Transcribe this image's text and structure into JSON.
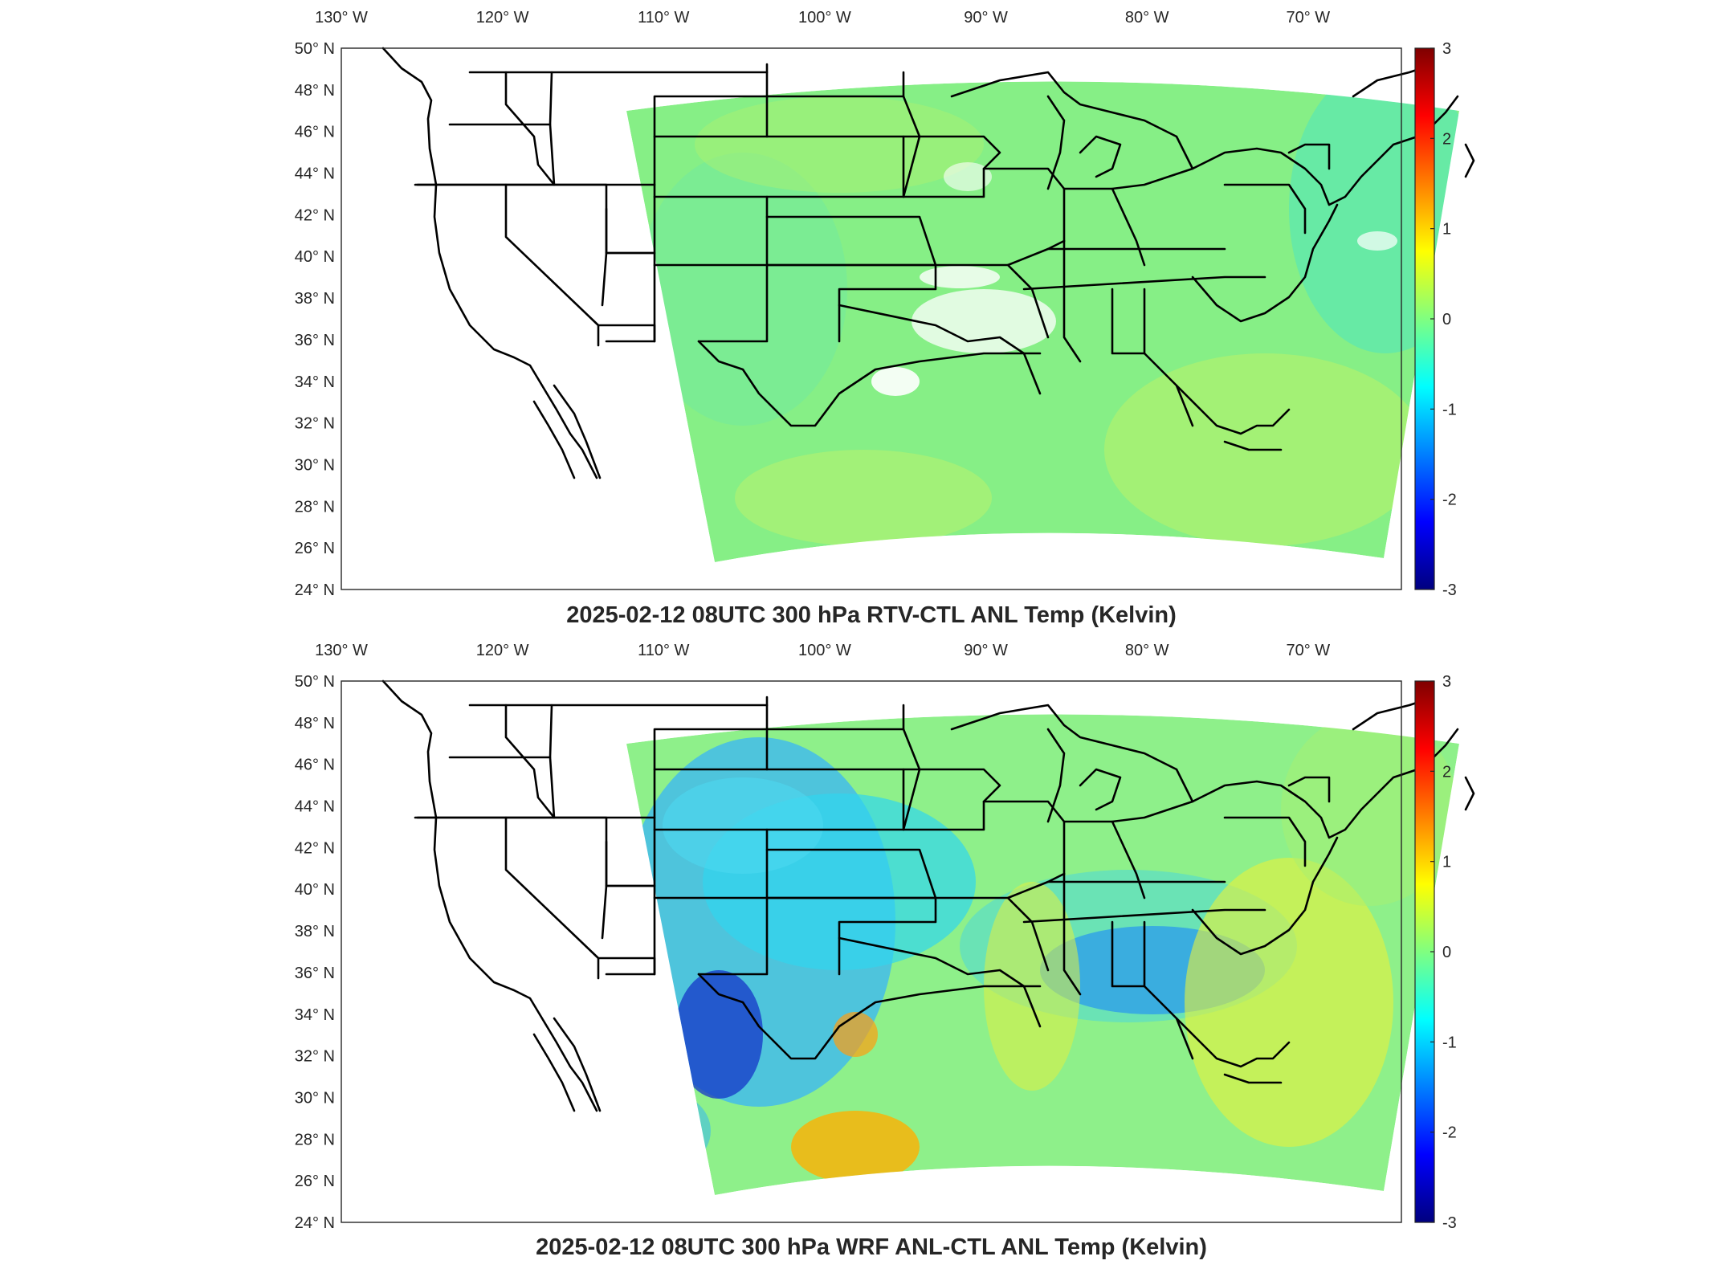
{
  "panels": [
    {
      "id": "rtv",
      "title": "2025-02-12 08UTC 300 hPa RTV-CTL ANL Temp (Kelvin)",
      "x_ticks": [
        "130° W",
        "120° W",
        "110° W",
        "100° W",
        "90° W",
        "80° W",
        "70° W"
      ],
      "y_ticks": [
        "50° N",
        "48° N",
        "46° N",
        "44° N",
        "42° N",
        "40° N",
        "38° N",
        "36° N",
        "34° N",
        "32° N",
        "30° N",
        "28° N",
        "26° N",
        "24° N"
      ],
      "colorbar_ticks": [
        "3",
        "2",
        "1",
        "0",
        "-1",
        "-2",
        "-3"
      ]
    },
    {
      "id": "wrf",
      "title": "2025-02-12 08UTC 300 hPa WRF ANL-CTL ANL Temp (Kelvin)",
      "x_ticks": [
        "130° W",
        "120° W",
        "110° W",
        "100° W",
        "90° W",
        "80° W",
        "70° W"
      ],
      "y_ticks": [
        "50° N",
        "48° N",
        "46° N",
        "44° N",
        "42° N",
        "40° N",
        "38° N",
        "36° N",
        "34° N",
        "32° N",
        "30° N",
        "28° N",
        "26° N",
        "24° N"
      ],
      "colorbar_ticks": [
        "3",
        "2",
        "1",
        "0",
        "-1",
        "-2",
        "-3"
      ]
    }
  ],
  "colors": {
    "colormap": [
      "#00007f",
      "#0000ff",
      "#0080ff",
      "#00ffff",
      "#80ff80",
      "#ffff00",
      "#ff8000",
      "#ff0000",
      "#7f0000"
    ],
    "field_neutral": "#8ef08a",
    "border": "#000000"
  },
  "colorbar_range": [
    -3,
    3
  ]
}
